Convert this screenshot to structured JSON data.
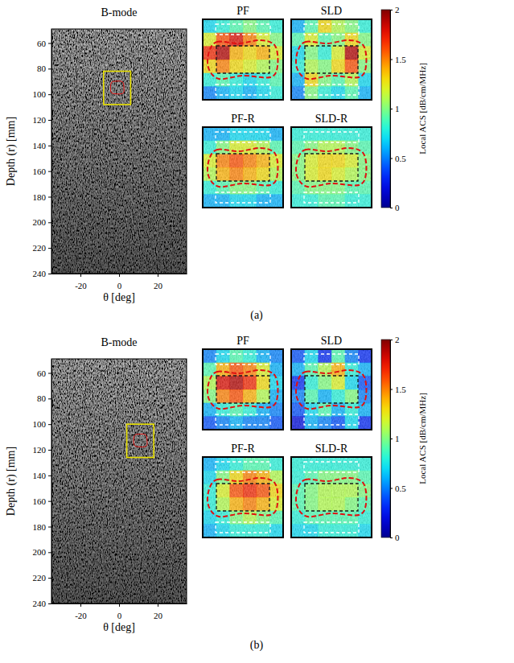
{
  "chart_data": [
    {
      "type": "heatmap",
      "caption": "(a)",
      "bmode": {
        "title": "B-mode",
        "x_label": "θ [deg]",
        "y_label": "Depth (r) [mm]",
        "xlim": [
          -35,
          35
        ],
        "ylim": [
          49,
          240
        ],
        "xticks": [
          -20,
          0,
          20
        ],
        "yticks": [
          60,
          80,
          100,
          120,
          140,
          160,
          180,
          200,
          220,
          240
        ],
        "roi": {
          "theta": [
            -8,
            6
          ],
          "depth": [
            82,
            108
          ]
        }
      },
      "maps": [
        {
          "title": "PF",
          "cells": [
            [
              0.7,
              0.8,
              0.9,
              1.0,
              0.9,
              0.8
            ],
            [
              1.2,
              1.6,
              1.8,
              1.5,
              1.2,
              1.0
            ],
            [
              1.7,
              1.9,
              1.4,
              1.3,
              1.4,
              1.2
            ],
            [
              1.3,
              1.5,
              1.3,
              1.2,
              1.1,
              1.0
            ],
            [
              0.8,
              0.9,
              0.8,
              0.7,
              0.8,
              0.9
            ],
            [
              0.5,
              0.6,
              0.7,
              0.6,
              0.7,
              0.8
            ]
          ]
        },
        {
          "title": "SLD",
          "cells": [
            [
              0.6,
              0.9,
              1.3,
              1.1,
              1.0,
              0.8
            ],
            [
              0.9,
              1.2,
              0.9,
              1.0,
              1.3,
              1.0
            ],
            [
              0.7,
              1.0,
              0.8,
              1.2,
              1.9,
              1.2
            ],
            [
              0.8,
              1.1,
              1.0,
              1.3,
              1.6,
              1.0
            ],
            [
              0.6,
              1.3,
              1.0,
              0.9,
              1.1,
              0.7
            ],
            [
              0.5,
              1.0,
              0.8,
              0.7,
              0.9,
              0.6
            ]
          ]
        },
        {
          "title": "PF-R",
          "cells": [
            [
              0.6,
              0.6,
              0.7,
              0.7,
              0.7,
              0.6
            ],
            [
              0.8,
              1.0,
              1.2,
              1.2,
              1.1,
              0.9
            ],
            [
              1.2,
              1.5,
              1.6,
              1.5,
              1.4,
              1.2
            ],
            [
              1.1,
              1.4,
              1.5,
              1.4,
              1.3,
              1.1
            ],
            [
              0.8,
              0.9,
              1.0,
              1.0,
              0.9,
              0.8
            ],
            [
              0.6,
              0.6,
              0.7,
              0.7,
              0.6,
              0.6
            ]
          ]
        },
        {
          "title": "SLD-R",
          "cells": [
            [
              0.8,
              0.8,
              0.8,
              0.8,
              0.8,
              0.8
            ],
            [
              0.9,
              1.0,
              1.1,
              1.1,
              1.0,
              0.9
            ],
            [
              1.0,
              1.2,
              1.3,
              1.3,
              1.2,
              1.0
            ],
            [
              1.0,
              1.2,
              1.3,
              1.2,
              1.1,
              1.0
            ],
            [
              0.9,
              1.0,
              1.0,
              1.0,
              0.9,
              0.9
            ],
            [
              0.8,
              0.8,
              0.9,
              0.9,
              0.8,
              0.8
            ]
          ]
        }
      ],
      "colorbar": {
        "label": "Local ACS [dB/cm/MHz]",
        "range": [
          0,
          2
        ],
        "ticks": [
          0,
          0.5,
          1,
          1.5,
          2
        ]
      }
    },
    {
      "type": "heatmap",
      "caption": "(b)",
      "bmode": {
        "title": "B-mode",
        "x_label": "θ [deg]",
        "y_label": "Depth (r) [mm]",
        "xlim": [
          -35,
          35
        ],
        "ylim": [
          49,
          240
        ],
        "xticks": [
          -20,
          0,
          20
        ],
        "yticks": [
          60,
          80,
          100,
          120,
          140,
          160,
          180,
          200,
          220,
          240
        ],
        "roi": {
          "theta": [
            4,
            18
          ],
          "depth": [
            100,
            126
          ]
        }
      },
      "maps": [
        {
          "title": "PF",
          "cells": [
            [
              0.5,
              0.7,
              0.9,
              0.8,
              0.6,
              0.5
            ],
            [
              0.9,
              1.4,
              1.6,
              1.5,
              1.2,
              0.6
            ],
            [
              1.1,
              1.8,
              1.9,
              1.7,
              1.3,
              0.7
            ],
            [
              1.0,
              1.5,
              1.6,
              1.4,
              1.1,
              0.6
            ],
            [
              0.6,
              0.8,
              0.9,
              0.8,
              0.6,
              0.5
            ],
            [
              0.4,
              0.5,
              0.6,
              0.5,
              0.5,
              0.4
            ]
          ]
        },
        {
          "title": "SLD",
          "cells": [
            [
              0.4,
              0.7,
              0.3,
              0.9,
              0.5,
              0.3
            ],
            [
              0.6,
              0.9,
              1.1,
              1.4,
              0.8,
              0.6
            ],
            [
              0.3,
              0.8,
              1.0,
              1.2,
              0.7,
              0.4
            ],
            [
              0.5,
              0.9,
              0.6,
              0.8,
              1.0,
              0.5
            ],
            [
              0.4,
              0.7,
              0.9,
              0.6,
              0.8,
              0.6
            ],
            [
              0.2,
              0.6,
              0.5,
              0.4,
              0.7,
              0.3
            ]
          ]
        },
        {
          "title": "PF-R",
          "cells": [
            [
              0.6,
              0.7,
              0.8,
              0.9,
              0.9,
              0.8
            ],
            [
              0.7,
              1.0,
              1.3,
              1.5,
              1.4,
              1.1
            ],
            [
              0.8,
              1.2,
              1.6,
              1.7,
              1.6,
              1.3
            ],
            [
              0.8,
              1.1,
              1.4,
              1.5,
              1.4,
              1.2
            ],
            [
              0.7,
              0.8,
              1.0,
              1.1,
              1.0,
              0.9
            ],
            [
              0.6,
              0.7,
              0.8,
              0.8,
              0.8,
              0.7
            ]
          ]
        },
        {
          "title": "SLD-R",
          "cells": [
            [
              0.8,
              0.8,
              0.8,
              0.8,
              0.8,
              0.8
            ],
            [
              0.8,
              0.9,
              1.0,
              1.0,
              1.0,
              0.9
            ],
            [
              0.9,
              1.0,
              1.1,
              1.1,
              1.1,
              1.0
            ],
            [
              0.9,
              1.0,
              1.1,
              1.1,
              1.0,
              0.9
            ],
            [
              0.8,
              0.9,
              0.9,
              0.9,
              0.9,
              0.8
            ],
            [
              0.7,
              0.7,
              0.8,
              0.8,
              0.8,
              0.7
            ]
          ]
        }
      ],
      "colorbar": {
        "label": "Local ACS [dB/cm/MHz]",
        "range": [
          0,
          2
        ],
        "ticks": [
          0,
          0.5,
          1,
          1.5,
          2
        ]
      }
    }
  ]
}
